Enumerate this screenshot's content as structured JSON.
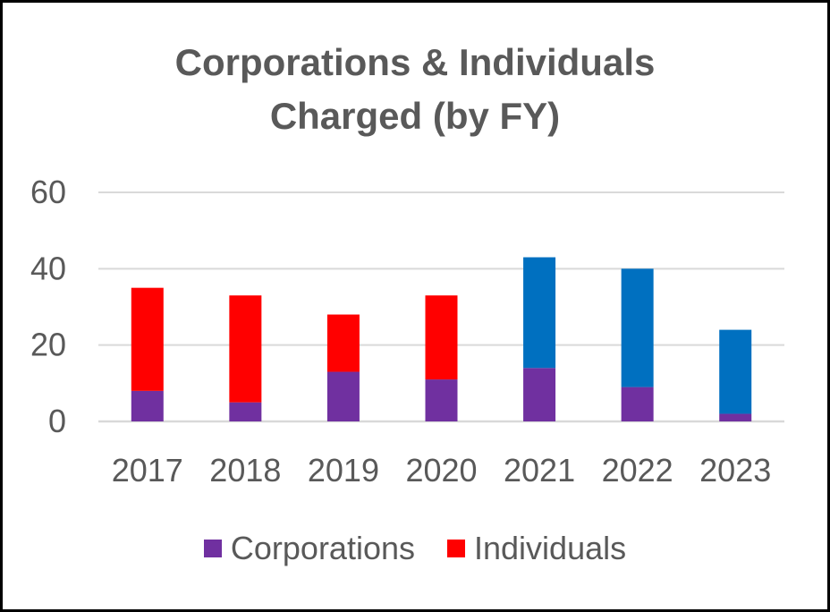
{
  "chart_data": {
    "type": "bar",
    "stacked": true,
    "title": "Corporations & Individuals Charged (by FY)",
    "title_lines": [
      "Corporations & Individuals",
      "Charged (by FY)"
    ],
    "categories": [
      "2017",
      "2018",
      "2019",
      "2020",
      "2021",
      "2022",
      "2023"
    ],
    "series": [
      {
        "name": "Corporations",
        "values": [
          8,
          5,
          13,
          11,
          14,
          9,
          2
        ],
        "color": "#7030A0"
      },
      {
        "name": "Individuals",
        "values": [
          27,
          28,
          15,
          22,
          29,
          31,
          22
        ],
        "colors": [
          "#FF0000",
          "#FF0000",
          "#FF0000",
          "#FF0000",
          "#0070C0",
          "#0070C0",
          "#0070C0"
        ]
      }
    ],
    "legend_series": [
      {
        "name": "Corporations",
        "color": "#7030A0"
      },
      {
        "name": "Individuals",
        "color": "#FF0000"
      }
    ],
    "ylim": [
      0,
      60
    ],
    "yticks": [
      0,
      20,
      40,
      60
    ],
    "ytick_labels": [
      "0",
      "20",
      "40",
      "60"
    ],
    "xlabel": "",
    "ylabel": "",
    "grid": true,
    "legend_position": "bottom"
  }
}
